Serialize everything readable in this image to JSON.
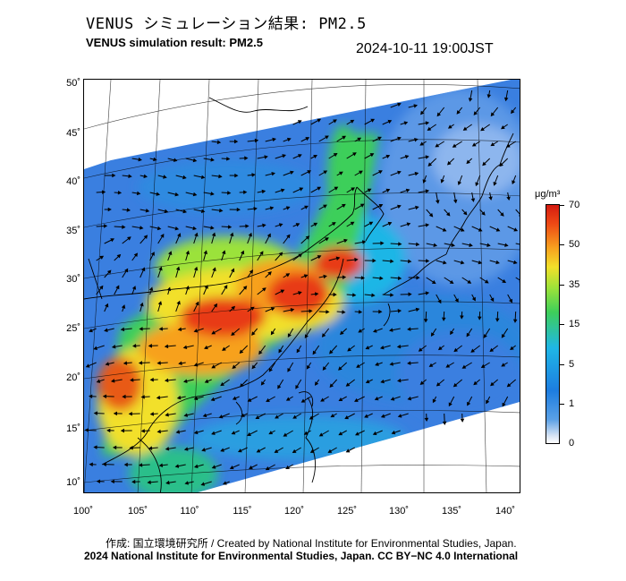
{
  "header": {
    "title_jp": "VENUS シミュレーション結果: PM2.5",
    "title_en": "VENUS simulation result: PM2.5",
    "timestamp": "2024-10-11 19:00JST"
  },
  "map": {
    "lat_ticks": [
      "50˚",
      "45˚",
      "40˚",
      "35˚",
      "30˚",
      "25˚",
      "20˚",
      "15˚",
      "10˚"
    ],
    "lon_ticks": [
      "100˚",
      "105˚",
      "110˚",
      "115˚",
      "120˚",
      "125˚",
      "130˚",
      "135˚",
      "140˚"
    ],
    "layers": [
      "coastlines",
      "graticule",
      "pm25-concentration",
      "wind-vectors"
    ]
  },
  "colorbar": {
    "unit": "μg/m³",
    "labels": [
      "70",
      "50",
      "35",
      "15",
      "5",
      "1",
      "0"
    ],
    "colors": {
      "0": "#ffffff",
      "1": "#5aa0e6",
      "5": "#1fb6e6",
      "15": "#3ecf5a",
      "35": "#f2e02a",
      "50": "#f7a11f",
      "70": "#d41b10"
    }
  },
  "footer": {
    "credit_line1": "作成: 国立環境研究所 / Created by National Institute for Environmental Studies, Japan.",
    "credit_line2": "2024 National Institute for Environmental Studies, Japan. CC BY−NC 4.0 International"
  }
}
